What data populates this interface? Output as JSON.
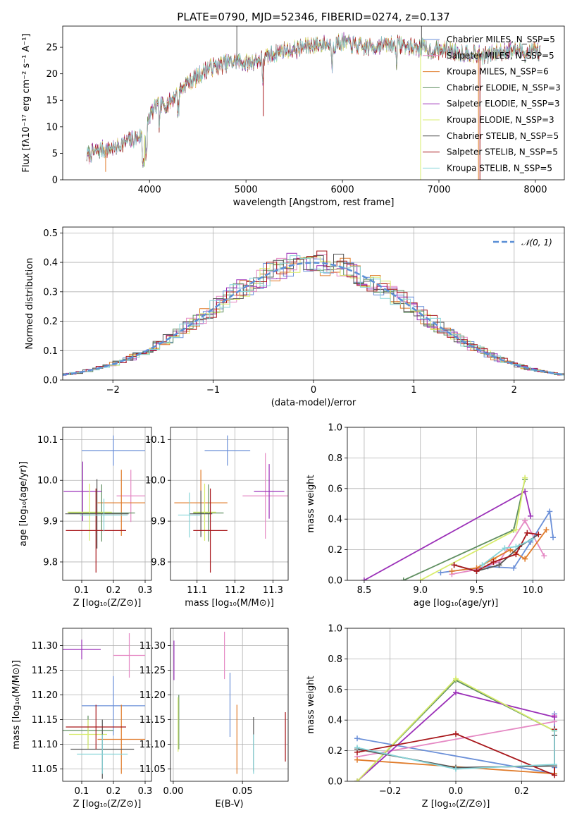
{
  "colors": {
    "chabrier_miles": "#6a8fd8",
    "salpeter_miles": "#e589c4",
    "kroupa_miles": "#e07b2a",
    "chabrier_elodie": "#5f8f60",
    "salpeter_elodie": "#9b30b8",
    "kroupa_elodie": "#d8ec6c",
    "chabrier_stelib": "#555555",
    "salpeter_stelib": "#a8171b",
    "kroupa_stelib": "#86d4d8",
    "normal_curve": "#5b8fd6",
    "grid": "#b0b0b0"
  },
  "chart_data": [
    {
      "id": "spectrum",
      "type": "line",
      "title": "PLATE=0790, MJD=52346, FIBERID=0274, z=0.137",
      "xlabel": "wavelength [Angstrom, rest frame]",
      "ylabel": "Flux [fλ10⁻¹⁷ erg cm⁻² s⁻¹ A⁻¹]",
      "xlim": [
        3100,
        8300
      ],
      "ylim": [
        0,
        29
      ],
      "xticks": [
        4000,
        5000,
        6000,
        7000,
        8000
      ],
      "yticks": [
        0,
        5,
        10,
        15,
        20,
        25
      ],
      "grid": false,
      "legend_position": "upper right",
      "series": [
        {
          "name": "Chabrier MILES, N_SSP=5",
          "color_key": "chabrier_miles"
        },
        {
          "name": "Salpeter MILES, N_SSP=5",
          "color_key": "salpeter_miles"
        },
        {
          "name": "Kroupa MILES, N_SSP=6",
          "color_key": "kroupa_miles"
        },
        {
          "name": "Chabrier ELODIE, N_SSP=3",
          "color_key": "chabrier_elodie"
        },
        {
          "name": "Salpeter ELODIE, N_SSP=3",
          "color_key": "salpeter_elodie"
        },
        {
          "name": "Kroupa ELODIE, N_SSP=3",
          "color_key": "kroupa_elodie"
        },
        {
          "name": "Chabrier STELIB, N_SSP=5",
          "color_key": "chabrier_stelib"
        },
        {
          "name": "Salpeter STELIB, N_SSP=5",
          "color_key": "salpeter_stelib"
        },
        {
          "name": "Kroupa STELIB, N_SSP=5",
          "color_key": "kroupa_stelib"
        }
      ],
      "envelope": {
        "x": [
          3350,
          3450,
          3550,
          3650,
          3750,
          3850,
          3950,
          4000,
          4050,
          4100,
          4200,
          4300,
          4400,
          4500,
          4600,
          4700,
          4800,
          4900,
          5000,
          5100,
          5200,
          5300,
          5400,
          5500,
          5600,
          5700,
          5800,
          5900,
          6000,
          6100,
          6200,
          6300,
          6400,
          6500,
          6600,
          6700,
          6800,
          6900,
          7000,
          7100,
          7200,
          7300,
          7400,
          7500,
          7600,
          7700,
          7800,
          7900,
          8000,
          8050
        ],
        "y": [
          4.5,
          5.5,
          5.8,
          6.2,
          7.0,
          7.8,
          8.5,
          12.0,
          13.5,
          13.8,
          14.5,
          16.5,
          18.5,
          19.5,
          21.0,
          21.5,
          22.0,
          22.5,
          22.0,
          22.5,
          23.0,
          24.0,
          24.5,
          24.5,
          25.0,
          25.5,
          25.5,
          25.5,
          26.0,
          25.5,
          25.0,
          25.0,
          25.5,
          25.5,
          25.5,
          25.0,
          25.0,
          24.5,
          24.5,
          24.5,
          24.0,
          24.0,
          23.5,
          23.5,
          24.0,
          24.5,
          24.5,
          24.0,
          24.5,
          24.0
        ]
      }
    },
    {
      "id": "residuals",
      "type": "line",
      "xlabel": "(data-model)/error",
      "ylabel": "Normed distribution",
      "xlim": [
        -2.5,
        2.5
      ],
      "ylim": [
        0,
        0.52
      ],
      "xticks": [
        -2,
        -1,
        0,
        1,
        2
      ],
      "yticks": [
        0.0,
        0.1,
        0.2,
        0.3,
        0.4,
        0.5
      ],
      "grid": true,
      "legend_position": "upper right",
      "legend": "𝒩(0, 1)",
      "bin_width": 0.1
    },
    {
      "id": "age_vs_Z",
      "type": "scatter",
      "xlabel": "Z [log₁₀(Z/Z⊙)]",
      "ylabel": "age  [log₁₀(age/yr)]",
      "xlim": [
        0.04,
        0.32
      ],
      "ylim": [
        9.755,
        10.13
      ],
      "xticks": [
        0.1,
        0.2,
        0.3
      ],
      "yticks": [
        9.8,
        9.9,
        10.0,
        10.1
      ],
      "grid": true,
      "errorbars": [
        {
          "key": "chabrier_miles",
          "x": 0.2,
          "xerr": 0.1,
          "y": 10.073,
          "yerr": 0.037
        },
        {
          "key": "salpeter_miles",
          "x": 0.255,
          "xerr": 0.045,
          "y": 9.962,
          "yerr": 0.064
        },
        {
          "key": "kroupa_miles",
          "x": 0.225,
          "xerr": 0.075,
          "y": 9.945,
          "yerr": 0.081
        },
        {
          "key": "chabrier_elodie",
          "x": 0.163,
          "xerr": 0.105,
          "y": 9.92,
          "yerr": 0.07
        },
        {
          "key": "salpeter_elodie",
          "x": 0.103,
          "xerr": 0.06,
          "y": 9.973,
          "yerr": 0.073
        },
        {
          "key": "kroupa_elodie",
          "x": 0.125,
          "xerr": 0.07,
          "y": 9.922,
          "yerr": 0.07
        },
        {
          "key": "chabrier_stelib",
          "x": 0.148,
          "xerr": 0.1,
          "y": 9.918,
          "yerr": 0.085
        },
        {
          "key": "salpeter_stelib",
          "x": 0.145,
          "xerr": 0.095,
          "y": 9.877,
          "yerr": 0.103
        },
        {
          "key": "kroupa_stelib",
          "x": 0.17,
          "xerr": 0.075,
          "y": 9.915,
          "yerr": 0.04
        }
      ]
    },
    {
      "id": "age_vs_mass",
      "type": "scatter",
      "xlabel": "mass [log₁₀(M/M⊙)]",
      "ylabel": "",
      "xlim": [
        11.03,
        11.34
      ],
      "ylim": [
        9.755,
        10.13
      ],
      "xticks": [
        11.1,
        11.2,
        11.3
      ],
      "yticks": [
        9.8,
        9.9,
        10.0,
        10.1
      ],
      "grid": true,
      "errorbars": [
        {
          "key": "chabrier_miles",
          "x": 11.18,
          "xerr": 0.06,
          "y": 10.073,
          "yerr": 0.037
        },
        {
          "key": "salpeter_miles",
          "x": 11.28,
          "xerr": 0.06,
          "y": 9.962,
          "yerr": 0.105
        },
        {
          "key": "kroupa_miles",
          "x": 11.11,
          "xerr": 0.07,
          "y": 9.945,
          "yerr": 0.081
        },
        {
          "key": "chabrier_elodie",
          "x": 11.13,
          "xerr": 0.04,
          "y": 9.92,
          "yerr": 0.07
        },
        {
          "key": "salpeter_elodie",
          "x": 11.29,
          "xerr": 0.04,
          "y": 9.973,
          "yerr": 0.067
        },
        {
          "key": "kroupa_elodie",
          "x": 11.12,
          "xerr": 0.03,
          "y": 9.922,
          "yerr": 0.07
        },
        {
          "key": "chabrier_stelib",
          "x": 11.11,
          "xerr": 0.03,
          "y": 9.918,
          "yerr": 0.057
        },
        {
          "key": "salpeter_stelib",
          "x": 11.135,
          "xerr": 0.045,
          "y": 9.877,
          "yerr": 0.103
        },
        {
          "key": "kroupa_stelib",
          "x": 11.08,
          "xerr": 0.03,
          "y": 9.915,
          "yerr": 0.055
        }
      ]
    },
    {
      "id": "weight_vs_age",
      "type": "line",
      "xlabel": "age  [log₁₀(age/yr)]",
      "ylabel": "mass weight",
      "xlim": [
        8.35,
        10.28
      ],
      "ylim": [
        0,
        1.0
      ],
      "xticks": [
        8.5,
        9.0,
        9.5,
        10.0
      ],
      "yticks": [
        0.0,
        0.2,
        0.4,
        0.6,
        0.8,
        1.0
      ],
      "grid": true,
      "series": [
        {
          "key": "chabrier_miles",
          "x": [
            9.18,
            9.6,
            9.83,
            9.98,
            10.15,
            10.18
          ],
          "y": [
            0.05,
            0.09,
            0.08,
            0.25,
            0.45,
            0.28
          ]
        },
        {
          "key": "salpeter_miles",
          "x": [
            9.28,
            9.5,
            9.7,
            9.93,
            10.1
          ],
          "y": [
            0.04,
            0.07,
            0.12,
            0.39,
            0.16
          ]
        },
        {
          "key": "kroupa_miles",
          "x": [
            9.28,
            9.5,
            9.65,
            9.8,
            9.93,
            10.12
          ],
          "y": [
            0.06,
            0.08,
            0.14,
            0.2,
            0.14,
            0.33
          ]
        },
        {
          "key": "chabrier_elodie",
          "x": [
            8.85,
            9.83,
            9.93
          ],
          "y": [
            0.0,
            0.33,
            0.66
          ]
        },
        {
          "key": "salpeter_elodie",
          "x": [
            8.5,
            9.93,
            9.98
          ],
          "y": [
            0.0,
            0.58,
            0.42
          ]
        },
        {
          "key": "kroupa_elodie",
          "x": [
            9.0,
            9.85,
            9.93
          ],
          "y": [
            0.0,
            0.33,
            0.67
          ]
        },
        {
          "key": "chabrier_stelib",
          "x": [
            9.3,
            9.5,
            9.7,
            9.88,
            10.05
          ],
          "y": [
            0.1,
            0.06,
            0.1,
            0.22,
            0.3
          ]
        },
        {
          "key": "salpeter_stelib",
          "x": [
            9.3,
            9.5,
            9.65,
            9.85,
            9.95,
            10.05
          ],
          "y": [
            0.1,
            0.06,
            0.12,
            0.17,
            0.31,
            0.3
          ]
        },
        {
          "key": "kroupa_stelib",
          "x": [
            9.55,
            9.75,
            9.85,
            10.0
          ],
          "y": [
            0.1,
            0.21,
            0.22,
            0.27
          ]
        }
      ]
    },
    {
      "id": "mass_vs_Z",
      "type": "scatter",
      "xlabel": "Z [log₁₀(Z/Z⊙)]",
      "ylabel": "mass [log₁₀(M/M⊙)]",
      "xlim": [
        0.04,
        0.32
      ],
      "ylim": [
        11.025,
        11.335
      ],
      "xticks": [
        0.1,
        0.2,
        0.3
      ],
      "yticks": [
        11.05,
        11.1,
        11.15,
        11.2,
        11.25,
        11.3
      ],
      "grid": true,
      "errorbars": [
        {
          "key": "chabrier_miles",
          "x": 0.2,
          "xerr": 0.1,
          "y": 11.178,
          "yerr": 0.06
        },
        {
          "key": "salpeter_miles",
          "x": 0.25,
          "xerr": 0.05,
          "y": 11.28,
          "yerr": 0.045
        },
        {
          "key": "kroupa_miles",
          "x": 0.225,
          "xerr": 0.075,
          "y": 11.11,
          "yerr": 0.07
        },
        {
          "key": "chabrier_elodie",
          "x": 0.12,
          "xerr": 0.08,
          "y": 11.128,
          "yerr": 0.03
        },
        {
          "key": "salpeter_elodie",
          "x": 0.1,
          "xerr": 0.06,
          "y": 11.292,
          "yerr": 0.02
        },
        {
          "key": "kroupa_elodie",
          "x": 0.12,
          "xerr": 0.06,
          "y": 11.12,
          "yerr": 0.03
        },
        {
          "key": "chabrier_stelib",
          "x": 0.165,
          "xerr": 0.1,
          "y": 11.09,
          "yerr": 0.06
        },
        {
          "key": "salpeter_stelib",
          "x": 0.145,
          "xerr": 0.095,
          "y": 11.135,
          "yerr": 0.045
        },
        {
          "key": "kroupa_stelib",
          "x": 0.165,
          "xerr": 0.08,
          "y": 11.08,
          "yerr": 0.04
        }
      ]
    },
    {
      "id": "mass_vs_ebv",
      "type": "scatter",
      "xlabel": "E(B-V)",
      "ylabel": "",
      "xlim": [
        -0.002,
        0.083
      ],
      "ylim": [
        11.025,
        11.335
      ],
      "xticks": [
        0.0,
        0.05
      ],
      "yticks": [
        11.05,
        11.1,
        11.15,
        11.2,
        11.25,
        11.3
      ],
      "grid": true,
      "errorbars": [
        {
          "key": "chabrier_miles",
          "x": 0.041,
          "y": 11.18,
          "yerr": 0.065
        },
        {
          "key": "salpeter_miles",
          "x": 0.037,
          "y": 11.28,
          "yerr": 0.048
        },
        {
          "key": "kroupa_miles",
          "x": 0.046,
          "y": 11.11,
          "yerr": 0.07
        },
        {
          "key": "chabrier_elodie",
          "x": 0.004,
          "y": 11.145,
          "yerr": 0.055
        },
        {
          "key": "salpeter_elodie",
          "x": 0.0005,
          "y": 11.27,
          "yerr": 0.04
        },
        {
          "key": "kroupa_elodie",
          "x": 0.0035,
          "y": 11.14,
          "yerr": 0.055
        },
        {
          "key": "chabrier_stelib",
          "x": 0.058,
          "y": 11.1,
          "yerr": 0.055
        },
        {
          "key": "salpeter_stelib",
          "x": 0.081,
          "y": 11.115,
          "yerr": 0.05
        },
        {
          "key": "kroupa_stelib",
          "x": 0.058,
          "y": 11.08,
          "yerr": 0.04
        }
      ]
    },
    {
      "id": "weight_vs_Z",
      "type": "line",
      "xlabel": "Z [log₁₀(Z/Z⊙)]",
      "ylabel": "mass weight",
      "xlim": [
        -0.33,
        0.33
      ],
      "ylim": [
        0,
        1.0
      ],
      "xticks": [
        -0.2,
        0.0,
        0.2
      ],
      "yticks": [
        0.0,
        0.2,
        0.4,
        0.6,
        0.8,
        1.0
      ],
      "grid": true,
      "series": [
        {
          "key": "chabrier_miles",
          "x": [
            -0.3,
            0.3,
            0.3,
            0.3
          ],
          "y": [
            0.28,
            0.05,
            0.44,
            0.09
          ]
        },
        {
          "key": "salpeter_miles",
          "x": [
            -0.3,
            0.3,
            0.3
          ],
          "y": [
            0.16,
            0.39,
            0.43
          ]
        },
        {
          "key": "kroupa_miles",
          "x": [
            -0.3,
            0.3,
            0.3
          ],
          "y": [
            0.14,
            0.05,
            0.33
          ]
        },
        {
          "key": "chabrier_elodie",
          "x": [
            -0.3,
            0.0,
            0.3
          ],
          "y": [
            0.0,
            0.66,
            0.33
          ]
        },
        {
          "key": "salpeter_elodie",
          "x": [
            -0.3,
            0.0,
            0.3
          ],
          "y": [
            0.0,
            0.58,
            0.42
          ]
        },
        {
          "key": "kroupa_elodie",
          "x": [
            -0.3,
            0.0,
            0.3
          ],
          "y": [
            0.0,
            0.67,
            0.33
          ]
        },
        {
          "key": "chabrier_stelib",
          "x": [
            -0.3,
            0.0,
            0.3,
            0.3
          ],
          "y": [
            0.21,
            0.09,
            0.1,
            0.3
          ]
        },
        {
          "key": "salpeter_stelib",
          "x": [
            -0.3,
            0.0,
            0.3,
            0.3
          ],
          "y": [
            0.19,
            0.31,
            0.04,
            0.34
          ]
        },
        {
          "key": "kroupa_stelib",
          "x": [
            -0.3,
            0.0,
            0.3,
            0.3
          ],
          "y": [
            0.22,
            0.08,
            0.11,
            0.33
          ]
        }
      ]
    }
  ]
}
